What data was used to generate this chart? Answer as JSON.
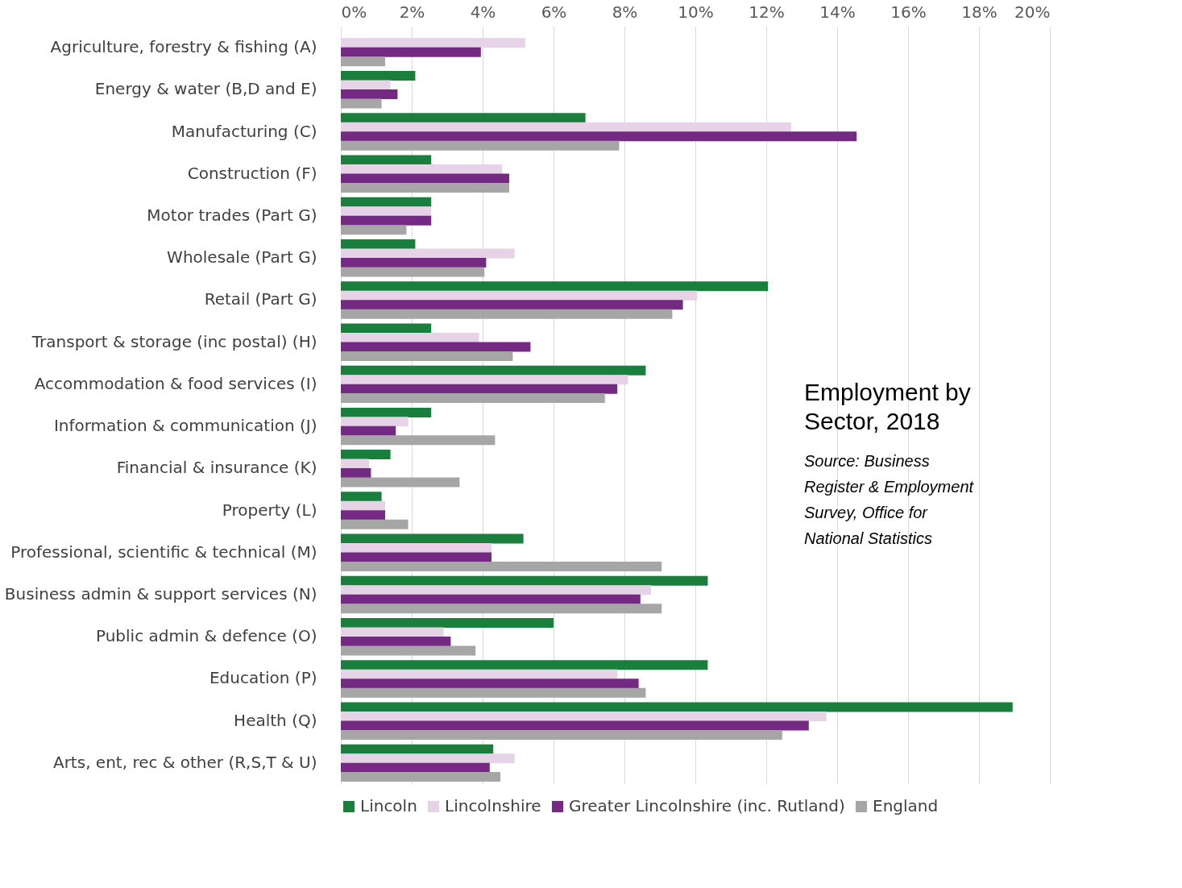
{
  "chart_data": {
    "type": "bar",
    "orientation": "horizontal",
    "title": "Employment by Sector, 2018",
    "annotations": [
      "Source: Business Register & Employment Survey, Office for National Statistics"
    ],
    "categories": [
      "Agriculture, forestry & fishing (A)",
      "Energy & water (B,D and E)",
      "Manufacturing (C)",
      "Construction (F)",
      "Motor trades (Part G)",
      "Wholesale (Part G)",
      "Retail (Part G)",
      "Transport & storage (inc postal) (H)",
      "Accommodation & food services (I)",
      "Information & communication (J)",
      "Financial & insurance (K)",
      "Property (L)",
      "Professional, scientific & technical (M)",
      "Business admin & support services (N)",
      "Public admin & defence (O)",
      "Education (P)",
      "Health (Q)",
      "Arts, ent, rec & other (R,S,T & U)"
    ],
    "series": [
      {
        "name": "Lincoln",
        "color": "#1a7f3c",
        "values": [
          null,
          2.1,
          6.9,
          2.55,
          2.55,
          2.1,
          12.05,
          2.55,
          8.6,
          2.55,
          1.4,
          1.15,
          5.15,
          10.35,
          6.0,
          10.35,
          18.95,
          4.3
        ]
      },
      {
        "name": "Lincolnshire",
        "color": "#e6d3e8",
        "values": [
          5.2,
          1.4,
          12.7,
          4.55,
          2.55,
          4.9,
          10.05,
          3.9,
          8.1,
          1.9,
          0.8,
          1.25,
          4.25,
          8.75,
          2.9,
          7.8,
          13.7,
          4.9
        ]
      },
      {
        "name": "Greater Lincolnshire (inc. Rutland)",
        "color": "#742a82",
        "values": [
          3.95,
          1.6,
          14.55,
          4.75,
          2.55,
          4.1,
          9.65,
          5.35,
          7.8,
          1.55,
          0.85,
          1.25,
          4.25,
          8.45,
          3.1,
          8.4,
          13.2,
          4.2
        ]
      },
      {
        "name": "England",
        "color": "#a6a6a6",
        "values": [
          1.25,
          1.15,
          7.85,
          4.75,
          1.85,
          4.05,
          9.35,
          4.85,
          7.45,
          4.35,
          3.35,
          1.9,
          9.05,
          9.05,
          3.8,
          8.6,
          12.45,
          4.5
        ]
      }
    ],
    "xlim": [
      0,
      20
    ],
    "xticks": [
      {
        "value": 0,
        "label": "0%"
      },
      {
        "value": 2,
        "label": "2%"
      },
      {
        "value": 4,
        "label": "4%"
      },
      {
        "value": 6,
        "label": "6%"
      },
      {
        "value": 8,
        "label": "8%"
      },
      {
        "value": 10,
        "label": "10%"
      },
      {
        "value": 12,
        "label": "12%"
      },
      {
        "value": 14,
        "label": "14%"
      },
      {
        "value": 16,
        "label": "16%"
      },
      {
        "value": 18,
        "label": "18%"
      },
      {
        "value": 20,
        "label": "20%"
      }
    ],
    "grid": "x",
    "legend": "bottom"
  }
}
